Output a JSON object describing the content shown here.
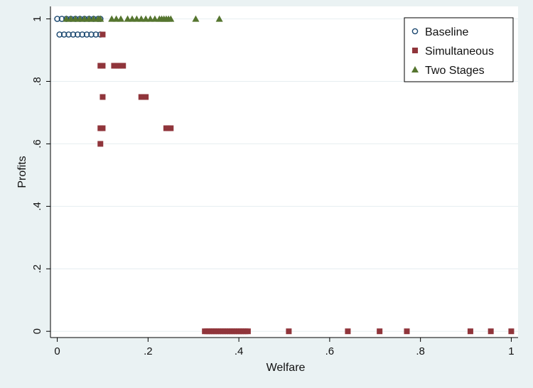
{
  "chart_data": {
    "type": "scatter",
    "title": "",
    "xlabel": "Welfare",
    "ylabel": "Profits",
    "xlim": [
      -0.015,
      1.015
    ],
    "ylim": [
      -0.02,
      1.04
    ],
    "x_ticks": [
      0,
      0.2,
      0.4,
      0.6,
      0.8,
      1
    ],
    "x_tick_labels": [
      "0",
      ".2",
      ".4",
      ".6",
      ".8",
      "1"
    ],
    "y_ticks": [
      0,
      0.2,
      0.4,
      0.6,
      0.8,
      1
    ],
    "y_tick_labels": [
      "0",
      ".2",
      ".4",
      ".6",
      ".8",
      "1"
    ],
    "grid": true,
    "legend_position": "top-right",
    "colors": {
      "background": "#eaf2f3",
      "plot_area": "#ffffff",
      "grid": "#e6eef0",
      "axis": "#000000"
    },
    "series": [
      {
        "name": "Baseline",
        "marker": "circle",
        "color": "#1a476f",
        "points": [
          [
            0.0,
            1.0
          ],
          [
            0.01,
            1.0
          ],
          [
            0.02,
            1.0
          ],
          [
            0.03,
            1.0
          ],
          [
            0.04,
            1.0
          ],
          [
            0.05,
            1.0
          ],
          [
            0.06,
            1.0
          ],
          [
            0.07,
            1.0
          ],
          [
            0.08,
            1.0
          ],
          [
            0.09,
            1.0
          ],
          [
            0.095,
            1.0
          ],
          [
            0.005,
            0.95
          ],
          [
            0.015,
            0.95
          ],
          [
            0.025,
            0.95
          ],
          [
            0.035,
            0.95
          ],
          [
            0.045,
            0.95
          ],
          [
            0.055,
            0.95
          ],
          [
            0.065,
            0.95
          ],
          [
            0.075,
            0.95
          ],
          [
            0.085,
            0.95
          ],
          [
            0.095,
            0.95
          ]
        ]
      },
      {
        "name": "Simultaneous",
        "marker": "square",
        "color": "#90353b",
        "points": [
          [
            0.1,
            0.95
          ],
          [
            0.095,
            0.85
          ],
          [
            0.1,
            0.85
          ],
          [
            0.125,
            0.85
          ],
          [
            0.13,
            0.85
          ],
          [
            0.135,
            0.85
          ],
          [
            0.14,
            0.85
          ],
          [
            0.145,
            0.85
          ],
          [
            0.1,
            0.75
          ],
          [
            0.185,
            0.75
          ],
          [
            0.19,
            0.75
          ],
          [
            0.195,
            0.75
          ],
          [
            0.095,
            0.65
          ],
          [
            0.1,
            0.65
          ],
          [
            0.24,
            0.65
          ],
          [
            0.245,
            0.65
          ],
          [
            0.25,
            0.65
          ],
          [
            0.095,
            0.6
          ],
          [
            0.325,
            0.0
          ],
          [
            0.33,
            0.0
          ],
          [
            0.335,
            0.0
          ],
          [
            0.34,
            0.0
          ],
          [
            0.345,
            0.0
          ],
          [
            0.35,
            0.0
          ],
          [
            0.355,
            0.0
          ],
          [
            0.36,
            0.0
          ],
          [
            0.365,
            0.0
          ],
          [
            0.37,
            0.0
          ],
          [
            0.375,
            0.0
          ],
          [
            0.38,
            0.0
          ],
          [
            0.385,
            0.0
          ],
          [
            0.39,
            0.0
          ],
          [
            0.395,
            0.0
          ],
          [
            0.4,
            0.0
          ],
          [
            0.405,
            0.0
          ],
          [
            0.41,
            0.0
          ],
          [
            0.415,
            0.0
          ],
          [
            0.42,
            0.0
          ],
          [
            0.51,
            0.0
          ],
          [
            0.64,
            0.0
          ],
          [
            0.71,
            0.0
          ],
          [
            0.77,
            0.0
          ],
          [
            0.91,
            0.0
          ],
          [
            0.955,
            0.0
          ],
          [
            1.0,
            0.0
          ]
        ]
      },
      {
        "name": "Two Stages",
        "marker": "triangle",
        "color": "#55752f",
        "points": [
          [
            0.02,
            1.0
          ],
          [
            0.03,
            1.0
          ],
          [
            0.04,
            1.0
          ],
          [
            0.05,
            1.0
          ],
          [
            0.06,
            1.0
          ],
          [
            0.07,
            1.0
          ],
          [
            0.08,
            1.0
          ],
          [
            0.09,
            1.0
          ],
          [
            0.095,
            1.0
          ],
          [
            0.12,
            1.0
          ],
          [
            0.13,
            1.0
          ],
          [
            0.14,
            1.0
          ],
          [
            0.155,
            1.0
          ],
          [
            0.165,
            1.0
          ],
          [
            0.175,
            1.0
          ],
          [
            0.185,
            1.0
          ],
          [
            0.195,
            1.0
          ],
          [
            0.205,
            1.0
          ],
          [
            0.215,
            1.0
          ],
          [
            0.225,
            1.0
          ],
          [
            0.23,
            1.0
          ],
          [
            0.235,
            1.0
          ],
          [
            0.24,
            1.0
          ],
          [
            0.245,
            1.0
          ],
          [
            0.25,
            1.0
          ],
          [
            0.305,
            1.0
          ],
          [
            0.357,
            1.0
          ]
        ]
      }
    ]
  }
}
